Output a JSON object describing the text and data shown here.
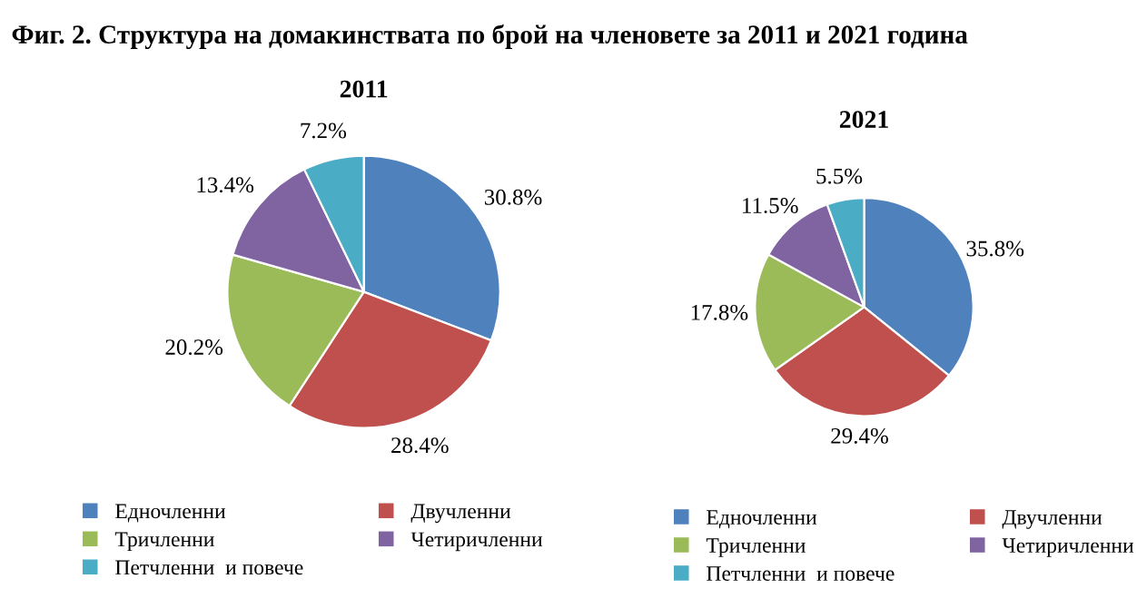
{
  "chart_data": [
    {
      "type": "pie",
      "title": "2011",
      "annotations": [
        "Фиг. 2. Структура на домакинствата по брой на членовете за 2011 и 2021 година"
      ],
      "categories": [
        "Едночленни",
        "Двучленни",
        "Тричленни",
        "Четиричленни",
        "Петчленни  и повече"
      ],
      "values": [
        30.8,
        28.4,
        20.2,
        13.4,
        7.2
      ],
      "value_labels": [
        "30.8%",
        "28.4%",
        "20.2%",
        "13.4%",
        "7.2%"
      ],
      "colors": [
        "#4f81bd",
        "#c0504d",
        "#9bbb59",
        "#8064a2",
        "#4bacc6"
      ],
      "legend": "bottom"
    },
    {
      "type": "pie",
      "title": "2021",
      "categories": [
        "Едночленни",
        "Двучленни",
        "Тричленни",
        "Четиричленни",
        "Петчленни  и повече"
      ],
      "values": [
        35.8,
        29.4,
        17.8,
        11.5,
        5.5
      ],
      "value_labels": [
        "35.8%",
        "29.4%",
        "17.8%",
        "11.5%",
        "5.5%"
      ],
      "colors": [
        "#4f81bd",
        "#c0504d",
        "#9bbb59",
        "#8064a2",
        "#4bacc6"
      ],
      "legend": "bottom"
    }
  ]
}
